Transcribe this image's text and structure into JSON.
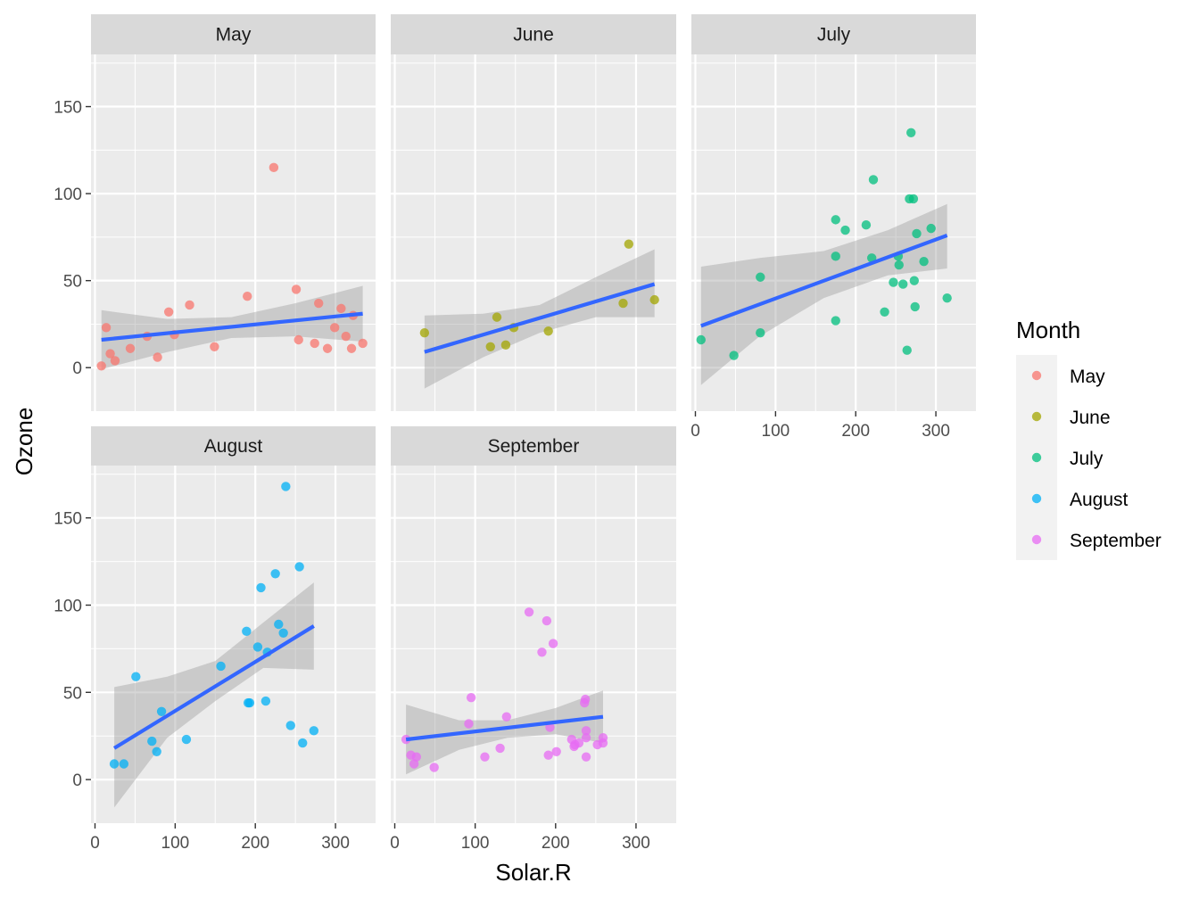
{
  "chart_data": {
    "type": "scatter",
    "facet_by": "Month",
    "xlabel": "Solar.R",
    "ylabel": "Ozone",
    "xlim": [
      -5,
      350
    ],
    "ylim": [
      -25,
      180
    ],
    "x_ticks": [
      0,
      100,
      200,
      300
    ],
    "y_ticks": [
      0,
      50,
      100,
      150
    ],
    "legend": {
      "title": "Month",
      "position": "right",
      "entries": [
        "May",
        "June",
        "July",
        "August",
        "September"
      ]
    },
    "colors": {
      "May": "#F8766D",
      "June": "#A3A500",
      "July": "#00BF7D",
      "August": "#00B0F6",
      "September": "#E76BF3",
      "fit_line": "#3366FF",
      "ribbon": "#999999",
      "panel_bg": "#EBEBEB",
      "strip_bg": "#D9D9D9"
    },
    "facets": [
      {
        "name": "May",
        "points": [
          [
            8,
            1
          ],
          [
            14,
            23
          ],
          [
            19,
            8
          ],
          [
            25,
            4
          ],
          [
            44,
            11
          ],
          [
            65,
            18
          ],
          [
            78,
            6
          ],
          [
            92,
            32
          ],
          [
            99,
            19
          ],
          [
            118,
            36
          ],
          [
            149,
            12
          ],
          [
            190,
            41
          ],
          [
            223,
            115
          ],
          [
            251,
            45
          ],
          [
            254,
            16
          ],
          [
            274,
            14
          ],
          [
            279,
            37
          ],
          [
            290,
            11
          ],
          [
            299,
            23
          ],
          [
            307,
            34
          ],
          [
            313,
            18
          ],
          [
            320,
            11
          ],
          [
            322,
            30
          ],
          [
            334,
            14
          ]
        ],
        "fit": {
          "x": [
            8,
            334
          ],
          "y": [
            16,
            31
          ]
        },
        "band": {
          "x": [
            8,
            90,
            170,
            250,
            334
          ],
          "lo": [
            -1,
            9,
            17,
            18,
            15
          ],
          "hi": [
            33,
            28,
            29,
            37,
            47
          ]
        }
      },
      {
        "name": "June",
        "points": [
          [
            37,
            20
          ],
          [
            127,
            29
          ],
          [
            148,
            23
          ],
          [
            138,
            13
          ],
          [
            119,
            12
          ],
          [
            191,
            21
          ],
          [
            284,
            37
          ],
          [
            291,
            71
          ],
          [
            323,
            39
          ]
        ],
        "fit": {
          "x": [
            37,
            323
          ],
          "y": [
            9,
            48
          ]
        },
        "band": {
          "x": [
            37,
            110,
            180,
            250,
            323
          ],
          "lo": [
            -12,
            6,
            20,
            29,
            29
          ],
          "hi": [
            30,
            31,
            36,
            52,
            68
          ]
        }
      },
      {
        "name": "July",
        "points": [
          [
            7,
            16
          ],
          [
            48,
            7
          ],
          [
            81,
            52
          ],
          [
            81,
            20
          ],
          [
            175,
            85
          ],
          [
            175,
            64
          ],
          [
            175,
            27
          ],
          [
            187,
            79
          ],
          [
            213,
            82
          ],
          [
            220,
            63
          ],
          [
            222,
            108
          ],
          [
            236,
            32
          ],
          [
            247,
            49
          ],
          [
            253,
            64
          ],
          [
            254,
            59
          ],
          [
            259,
            48
          ],
          [
            264,
            10
          ],
          [
            267,
            97
          ],
          [
            269,
            135
          ],
          [
            272,
            97
          ],
          [
            273,
            50
          ],
          [
            274,
            35
          ],
          [
            276,
            77
          ],
          [
            285,
            61
          ],
          [
            294,
            80
          ],
          [
            314,
            40
          ]
        ],
        "fit": {
          "x": [
            7,
            314
          ],
          "y": [
            24,
            76
          ]
        },
        "band": {
          "x": [
            7,
            80,
            160,
            240,
            314
          ],
          "lo": [
            -10,
            18,
            40,
            53,
            57
          ],
          "hi": [
            58,
            63,
            67,
            79,
            94
          ]
        }
      },
      {
        "name": "August",
        "points": [
          [
            24,
            9
          ],
          [
            36,
            9
          ],
          [
            51,
            59
          ],
          [
            71,
            22
          ],
          [
            77,
            16
          ],
          [
            83,
            39
          ],
          [
            114,
            23
          ],
          [
            157,
            65
          ],
          [
            189,
            85
          ],
          [
            191,
            44
          ],
          [
            193,
            44
          ],
          [
            203,
            76
          ],
          [
            207,
            110
          ],
          [
            213,
            45
          ],
          [
            215,
            73
          ],
          [
            225,
            118
          ],
          [
            229,
            89
          ],
          [
            235,
            84
          ],
          [
            238,
            168
          ],
          [
            244,
            31
          ],
          [
            255,
            122
          ],
          [
            259,
            21
          ],
          [
            273,
            28
          ]
        ],
        "fit": {
          "x": [
            24,
            273
          ],
          "y": [
            18,
            88
          ]
        },
        "band": {
          "x": [
            24,
            90,
            150,
            210,
            273
          ],
          "lo": [
            -16,
            24,
            45,
            64,
            63
          ],
          "hi": [
            53,
            59,
            68,
            90,
            113
          ]
        }
      },
      {
        "name": "September",
        "points": [
          [
            14,
            23
          ],
          [
            20,
            14
          ],
          [
            24,
            9
          ],
          [
            27,
            13
          ],
          [
            49,
            7
          ],
          [
            92,
            32
          ],
          [
            95,
            47
          ],
          [
            112,
            13
          ],
          [
            131,
            18
          ],
          [
            139,
            36
          ],
          [
            167,
            96
          ],
          [
            183,
            73
          ],
          [
            189,
            91
          ],
          [
            191,
            14
          ],
          [
            193,
            30
          ],
          [
            197,
            78
          ],
          [
            201,
            16
          ],
          [
            220,
            23
          ],
          [
            223,
            19
          ],
          [
            224,
            20
          ],
          [
            229,
            21
          ],
          [
            236,
            44
          ],
          [
            237,
            46
          ],
          [
            238,
            28
          ],
          [
            238,
            13
          ],
          [
            238,
            24
          ],
          [
            252,
            20
          ],
          [
            259,
            21
          ],
          [
            259,
            24
          ]
        ],
        "fit": {
          "x": [
            14,
            259
          ],
          "y": [
            23,
            36
          ]
        },
        "band": {
          "x": [
            14,
            80,
            140,
            200,
            259
          ],
          "lo": [
            3,
            17,
            24,
            26,
            21
          ],
          "hi": [
            43,
            34,
            34,
            41,
            51
          ]
        }
      }
    ]
  }
}
